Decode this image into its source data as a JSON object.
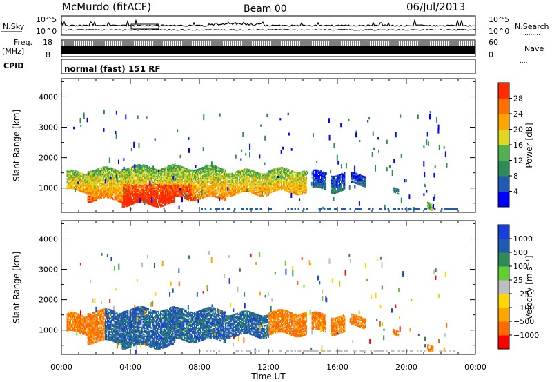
{
  "header": {
    "station": "McMurdo (fitACF)",
    "beam": "Beam 00",
    "date": "06/Jul/2013"
  },
  "aux": {
    "nsky_label": "N.Sky",
    "nsky_top": "10^5",
    "nsky_bottom": "10^0",
    "nsearch_label": "N.Search",
    "nsearch_dots": "........",
    "nsearch_top": "10^5",
    "nsearch_bottom": "10^0",
    "freq_label": "Freq.",
    "freq_unit": "[MHz]",
    "freq_top": "18",
    "freq_bottom": "8",
    "nave_label": "Nave",
    "nave_dots": "....",
    "nave_top": "60",
    "nave_bottom": "0",
    "cpid_label": "CPID",
    "cpid_value": "normal (fast) 151 RF"
  },
  "colors": {
    "power": [
      "#0000ff",
      "#1f5bb0",
      "#2e8b57",
      "#52b050",
      "#e0d820",
      "#ffa500",
      "#ff7000",
      "#ff2a00"
    ],
    "velocity": [
      "#ff0000",
      "#ff6a00",
      "#ffa500",
      "#ffd700",
      "#bebebe",
      "#66cc33",
      "#2e8b57",
      "#1f5bb0",
      "#1a3ddc"
    ]
  },
  "chart_data": [
    {
      "type": "heatmap",
      "name": "power",
      "ylabel": "Slant Range [km]",
      "yticks": [
        "1000",
        "2000",
        "3000",
        "4000"
      ],
      "ylim": [
        200,
        4600
      ],
      "xticks": [
        "00:00",
        "04:00",
        "08:00",
        "12:00",
        "16:00",
        "20:00",
        "00:00"
      ],
      "xlim": [
        0,
        24
      ],
      "colorbar": {
        "label": "Power [dB]",
        "ticks": [
          "4",
          "8",
          "12",
          "16",
          "20",
          "24",
          "28"
        ],
        "range": [
          0,
          30
        ]
      }
    },
    {
      "type": "heatmap",
      "name": "velocity",
      "ylabel": "Slant Range [km]",
      "yticks": [
        "1000",
        "2000",
        "3000",
        "4000"
      ],
      "ylim": [
        200,
        4600
      ],
      "xticks": [
        "00:00",
        "04:00",
        "08:00",
        "12:00",
        "16:00",
        "20:00",
        "00:00"
      ],
      "xlim": [
        0,
        24
      ],
      "xlabel": "Time UT",
      "colorbar": {
        "label": "Velocity [m s⁻¹]",
        "ticks": [
          "1000",
          "500",
          "100",
          "25",
          "−25",
          "−100",
          "−500",
          "−1000"
        ]
      }
    }
  ]
}
